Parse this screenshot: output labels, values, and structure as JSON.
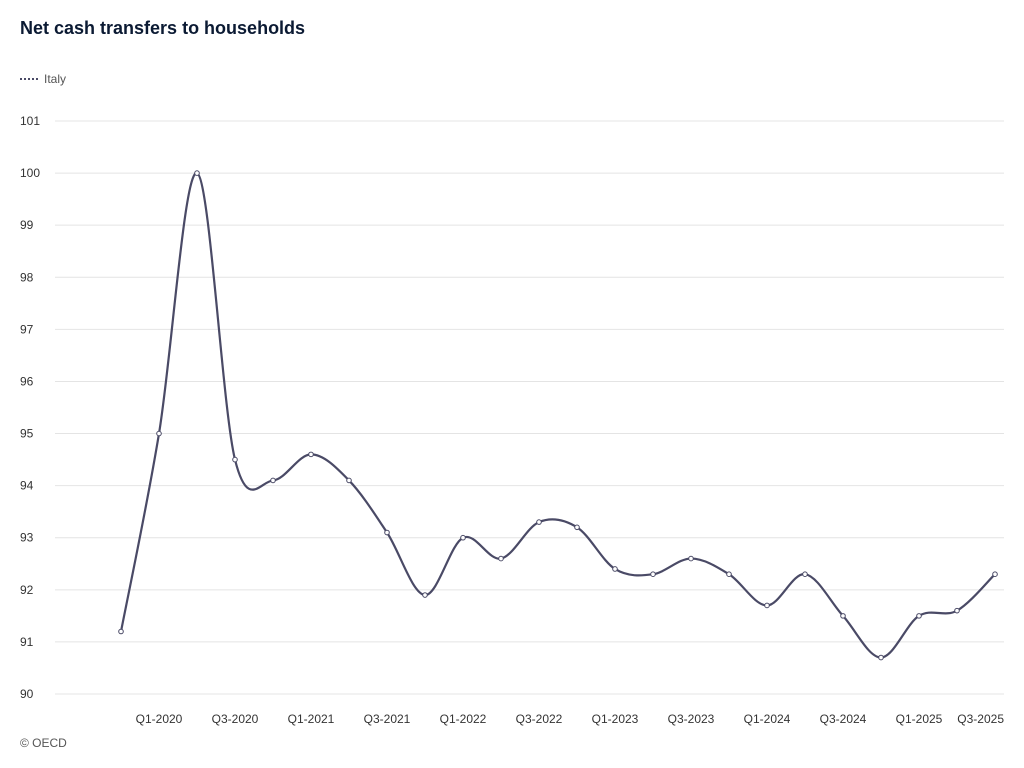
{
  "title": "Net cash transfers to households",
  "footer": "© OECD",
  "colors": {
    "series": "#4a4a66",
    "grid": "#e4e4e4",
    "title": "#0b1a33"
  },
  "chart_data": {
    "type": "line",
    "title": "Net cash transfers to households",
    "xlabel": "",
    "ylabel": "",
    "ylim": [
      90,
      101
    ],
    "yticks": [
      90,
      91,
      92,
      93,
      94,
      95,
      96,
      97,
      98,
      99,
      100,
      101
    ],
    "grid": true,
    "legend_placement": "top-left",
    "x": [
      "Q4-2019",
      "Q1-2020",
      "Q2-2020",
      "Q3-2020",
      "Q4-2020",
      "Q1-2021",
      "Q2-2021",
      "Q3-2021",
      "Q4-2021",
      "Q1-2022",
      "Q2-2022",
      "Q3-2022",
      "Q4-2022",
      "Q1-2023",
      "Q2-2023",
      "Q3-2023",
      "Q4-2023",
      "Q1-2024",
      "Q2-2024",
      "Q3-2024",
      "Q4-2024",
      "Q1-2025",
      "Q2-2025",
      "Q3-2025"
    ],
    "xtick_labels": [
      "Q1-2020",
      "Q3-2020",
      "Q1-2021",
      "Q3-2021",
      "Q1-2022",
      "Q3-2022",
      "Q1-2023",
      "Q3-2023",
      "Q1-2024",
      "Q3-2024",
      "Q1-2025",
      "Q3-2025"
    ],
    "series": [
      {
        "name": "Italy",
        "values": [
          91.2,
          95.0,
          100.0,
          94.5,
          94.1,
          94.6,
          94.1,
          93.1,
          91.9,
          93.0,
          92.6,
          93.3,
          93.2,
          92.4,
          92.3,
          92.6,
          92.3,
          91.7,
          92.3,
          91.5,
          90.7,
          91.5,
          91.6,
          92.3
        ]
      }
    ]
  }
}
